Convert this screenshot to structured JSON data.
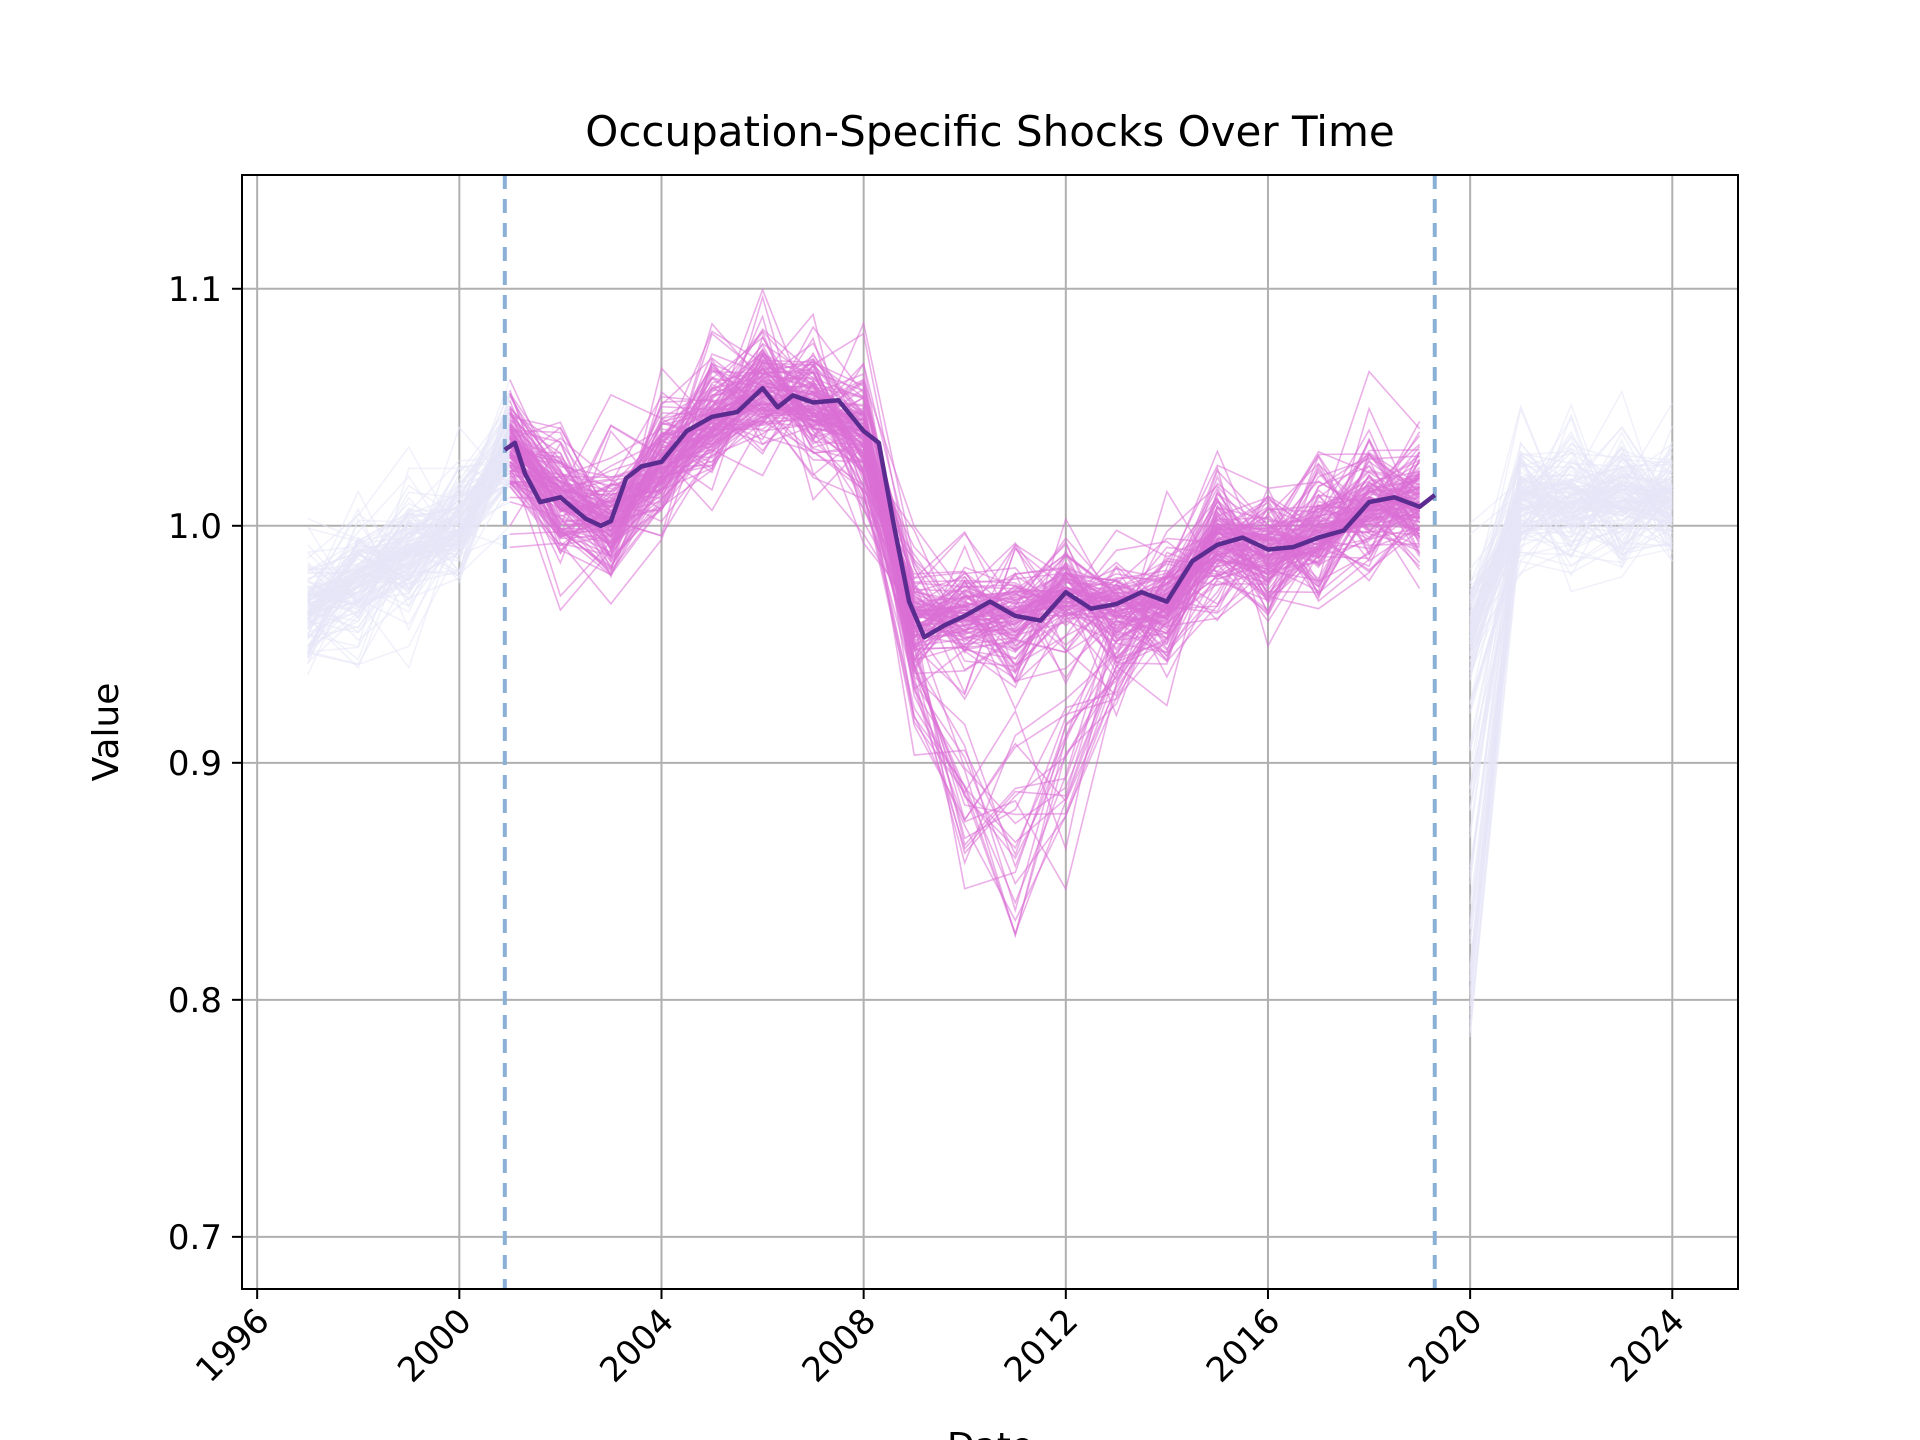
{
  "chart_data": {
    "type": "line",
    "title": "Occupation-Specific Shocks Over Time",
    "xlabel": "Date",
    "ylabel": "Value",
    "xlim": [
      1995.7,
      2025.3
    ],
    "ylim": [
      0.678,
      1.148
    ],
    "grid": true,
    "x_ticks": [
      "1996",
      "2000",
      "2004",
      "2008",
      "2012",
      "2016",
      "2020",
      "2024"
    ],
    "y_ticks": [
      "0.7",
      "0.8",
      "0.9",
      "1.0",
      "1.1"
    ],
    "vertical_markers": [
      {
        "x": 2000.9,
        "style": "dashed",
        "color": "#8ab0d6"
      },
      {
        "x": 2019.3,
        "style": "dashed",
        "color": "#8ab0d6"
      }
    ],
    "colors": {
      "outside_window": "#e6e6f8",
      "inside_window": "#da70d6",
      "mean_line": "#5b2c8f",
      "grid": "#b0b0b0"
    },
    "series": [
      {
        "label": "mean",
        "x": [
          2000.9,
          2001.1,
          2001.3,
          2001.6,
          2002.0,
          2002.5,
          2002.8,
          2003.0,
          2003.3,
          2003.6,
          2004.0,
          2004.5,
          2005.0,
          2005.5,
          2006.0,
          2006.3,
          2006.6,
          2007.0,
          2007.5,
          2008.0,
          2008.3,
          2008.6,
          2008.9,
          2009.2,
          2009.6,
          2010.0,
          2010.5,
          2011.0,
          2011.5,
          2012.0,
          2012.5,
          2013.0,
          2013.5,
          2014.0,
          2014.5,
          2015.0,
          2015.5,
          2016.0,
          2016.5,
          2017.0,
          2017.5,
          2018.0,
          2018.5,
          2019.0,
          2019.3
        ],
        "y": [
          1.032,
          1.035,
          1.022,
          1.01,
          1.012,
          1.003,
          1.0,
          1.002,
          1.02,
          1.025,
          1.027,
          1.04,
          1.046,
          1.048,
          1.058,
          1.05,
          1.055,
          1.052,
          1.053,
          1.04,
          1.035,
          1.0,
          0.968,
          0.953,
          0.958,
          0.962,
          0.968,
          0.962,
          0.96,
          0.972,
          0.965,
          0.967,
          0.972,
          0.968,
          0.985,
          0.992,
          0.995,
          0.99,
          0.991,
          0.995,
          0.998,
          1.01,
          1.012,
          1.008,
          1.013
        ]
      }
    ]
  }
}
